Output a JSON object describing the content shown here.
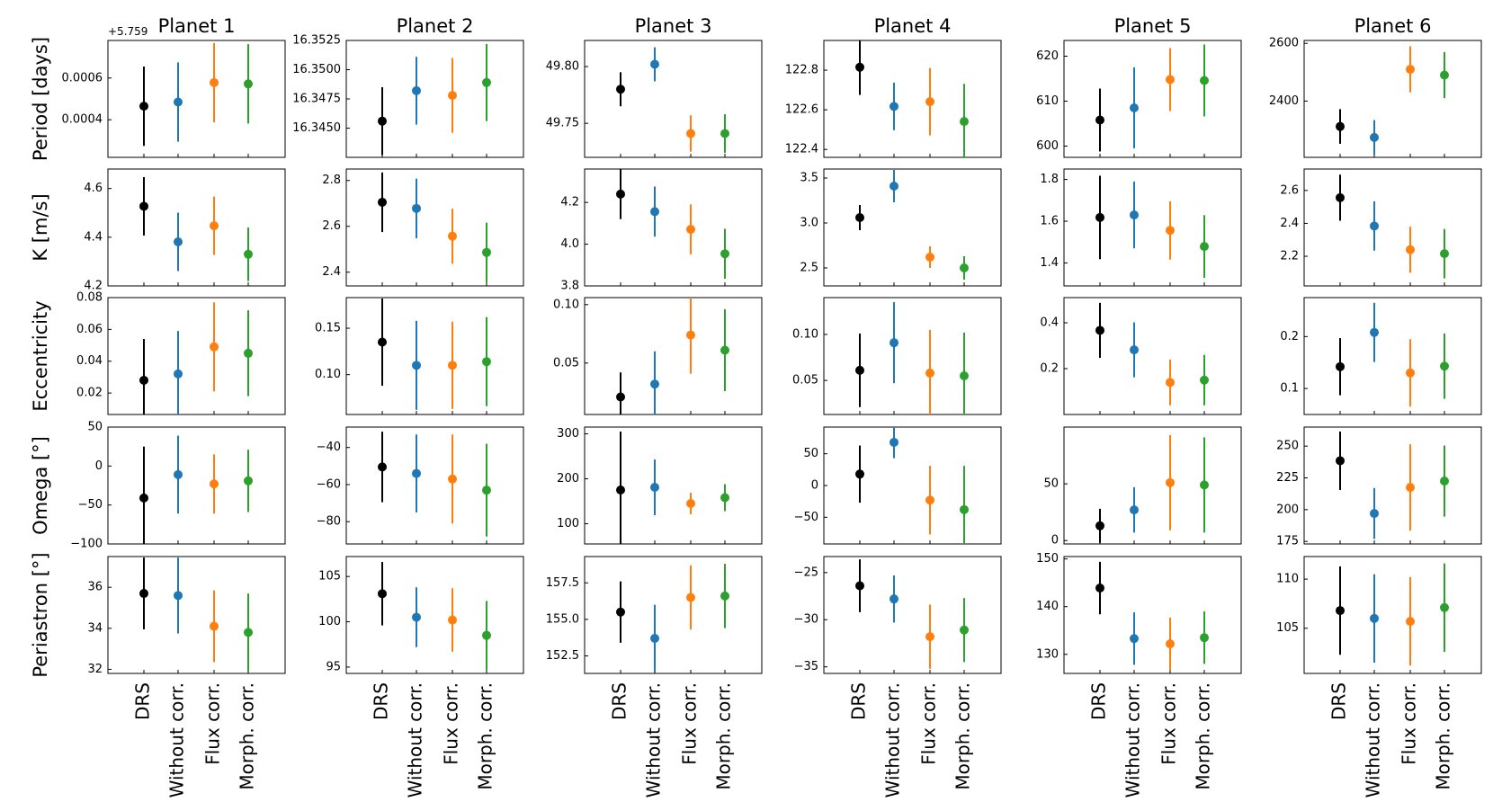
{
  "chart_data": {
    "type": "scatter",
    "subtype": "errorbar-grid",
    "methods": [
      "DRS",
      "Without corr.",
      "Flux corr.",
      "Morph. corr."
    ],
    "colors": {
      "DRS": "#000000",
      "Without corr.": "#1f77b4",
      "Flux corr.": "#ff7f0e",
      "Morph. corr.": "#2ca02c"
    },
    "planets": [
      "Planet 1",
      "Planet 2",
      "Planet 3",
      "Planet 4",
      "Planet 5",
      "Planet 6"
    ],
    "parameters": [
      "Period [days]",
      "K [m/s]",
      "Eccentricity",
      "Omega [°]",
      "Periastron [°]"
    ],
    "panels": [
      [
        {
          "offset_label": "+5.759",
          "ylim": [
            0.00022,
            0.00078
          ],
          "ticks": [
            0.0004,
            0.0006
          ],
          "tick_labels": [
            "0.0004",
            "0.0006"
          ],
          "values": [
            0.000465,
            0.000485,
            0.000578,
            0.000572
          ],
          "errors": [
            0.00019,
            0.00019,
            0.00019,
            0.00019
          ]
        },
        {
          "ylim": [
            16.3425,
            16.3525
          ],
          "ticks": [
            16.345,
            16.3475,
            16.35,
            16.3525
          ],
          "tick_labels": [
            "16.3450",
            "16.3475",
            "16.3500",
            "16.3525"
          ],
          "values": [
            16.3456,
            16.3482,
            16.3478,
            16.3489
          ],
          "errors": [
            0.0029,
            0.0029,
            0.0032,
            0.0033
          ]
        },
        {
          "ylim": [
            49.72,
            49.823
          ],
          "ticks": [
            49.75,
            49.8
          ],
          "tick_labels": [
            "49.75",
            "49.80"
          ],
          "values": [
            49.78,
            49.802,
            49.741,
            49.741
          ],
          "errors": [
            0.015,
            0.015,
            0.016,
            0.017
          ]
        },
        {
          "ylim": [
            122.36,
            122.95
          ],
          "ticks": [
            122.4,
            122.6,
            122.8
          ],
          "tick_labels": [
            "122.4",
            "122.6",
            "122.8"
          ],
          "values": [
            122.815,
            122.617,
            122.641,
            122.541
          ],
          "errors": [
            0.14,
            0.12,
            0.17,
            0.19
          ]
        },
        {
          "ylim": [
            597.5,
            623.5
          ],
          "ticks": [
            600,
            610,
            620
          ],
          "tick_labels": [
            "600",
            "610",
            "620"
          ],
          "values": [
            605.8,
            608.5,
            614.8,
            614.6
          ],
          "errors": [
            7,
            9,
            7,
            8
          ]
        },
        {
          "ylim": [
            2205,
            2610
          ],
          "ticks": [
            2400,
            2600
          ],
          "tick_labels": [
            "2400",
            "2600"
          ],
          "values": [
            2312,
            2274,
            2510,
            2490
          ],
          "errors": [
            60,
            60,
            80,
            80
          ]
        }
      ],
      [
        {
          "ylim": [
            4.2,
            4.68
          ],
          "ticks": [
            4.2,
            4.4,
            4.6
          ],
          "tick_labels": [
            "4.2",
            "4.4",
            "4.6"
          ],
          "values": [
            4.527,
            4.381,
            4.447,
            4.33
          ],
          "errors": [
            0.12,
            0.12,
            0.12,
            0.11
          ]
        },
        {
          "ylim": [
            2.34,
            2.85
          ],
          "ticks": [
            2.4,
            2.6,
            2.8
          ],
          "tick_labels": [
            "2.4",
            "2.6",
            "2.8"
          ],
          "values": [
            2.705,
            2.678,
            2.557,
            2.486
          ],
          "errors": [
            0.13,
            0.13,
            0.12,
            0.13
          ]
        },
        {
          "ylim": [
            3.8,
            4.36
          ],
          "ticks": [
            3.8,
            4.0,
            4.2
          ],
          "tick_labels": [
            "3.8",
            "4.0",
            "4.2"
          ],
          "values": [
            4.24,
            4.156,
            4.071,
            3.954
          ],
          "errors": [
            0.12,
            0.12,
            0.12,
            0.12
          ]
        },
        {
          "ylim": [
            2.3,
            3.6
          ],
          "ticks": [
            2.5,
            3.0,
            3.5
          ],
          "tick_labels": [
            "2.5",
            "3.0",
            "3.5"
          ],
          "values": [
            3.06,
            3.41,
            2.62,
            2.5
          ],
          "errors": [
            0.14,
            0.18,
            0.12,
            0.13
          ]
        },
        {
          "ylim": [
            1.29,
            1.85
          ],
          "ticks": [
            1.4,
            1.6,
            1.8
          ],
          "tick_labels": [
            "1.4",
            "1.6",
            "1.8"
          ],
          "values": [
            1.618,
            1.63,
            1.556,
            1.479
          ],
          "errors": [
            0.2,
            0.16,
            0.14,
            0.15
          ]
        },
        {
          "ylim": [
            2.02,
            2.73
          ],
          "ticks": [
            2.2,
            2.4,
            2.6
          ],
          "tick_labels": [
            "2.2",
            "2.4",
            "2.6"
          ],
          "values": [
            2.556,
            2.384,
            2.24,
            2.216
          ],
          "errors": [
            0.14,
            0.15,
            0.14,
            0.15
          ]
        }
      ],
      [
        {
          "ylim": [
            0.0065,
            0.08
          ],
          "ticks": [
            0.02,
            0.04,
            0.06,
            0.08
          ],
          "tick_labels": [
            "0.02",
            "0.04",
            "0.06",
            "0.08"
          ],
          "values": [
            0.028,
            0.032,
            0.049,
            0.045
          ],
          "errors": [
            0.026,
            0.027,
            0.028,
            0.027
          ]
        },
        {
          "ylim": [
            0.057,
            0.183
          ],
          "ticks": [
            0.1,
            0.15
          ],
          "tick_labels": [
            "0.10",
            "0.15"
          ],
          "values": [
            0.135,
            0.11,
            0.11,
            0.114
          ],
          "errors": [
            0.047,
            0.048,
            0.047,
            0.048
          ]
        },
        {
          "ylim": [
            0.006,
            0.106
          ],
          "ticks": [
            0.05,
            0.1
          ],
          "tick_labels": [
            "0.05",
            "0.10"
          ],
          "values": [
            0.021,
            0.032,
            0.074,
            0.061
          ],
          "errors": [
            0.021,
            0.028,
            0.033,
            0.035
          ]
        },
        {
          "ylim": [
            0.013,
            0.14
          ],
          "ticks": [
            0.05,
            0.1
          ],
          "tick_labels": [
            "0.05",
            "0.10"
          ],
          "values": [
            0.061,
            0.091,
            0.058,
            0.055
          ],
          "errors": [
            0.04,
            0.044,
            0.047,
            0.047
          ]
        },
        {
          "ylim": [
            0.0,
            0.51
          ],
          "ticks": [
            0.2,
            0.4
          ],
          "tick_labels": [
            "0.2",
            "0.4"
          ],
          "values": [
            0.367,
            0.282,
            0.14,
            0.15
          ],
          "errors": [
            0.12,
            0.12,
            0.1,
            0.11
          ]
        },
        {
          "ylim": [
            0.05,
            0.275
          ],
          "ticks": [
            0.1,
            0.2
          ],
          "tick_labels": [
            "0.1",
            "0.2"
          ],
          "values": [
            0.142,
            0.208,
            0.13,
            0.143
          ],
          "errors": [
            0.055,
            0.057,
            0.065,
            0.063
          ]
        }
      ],
      [
        {
          "ylim": [
            -100,
            50
          ],
          "ticks": [
            -100,
            -50,
            0,
            50
          ],
          "tick_labels": [
            "−100",
            "−50",
            "0",
            "50"
          ],
          "values": [
            -41,
            -11,
            -23,
            -19
          ],
          "errors": [
            66,
            50,
            38,
            40
          ]
        },
        {
          "ylim": [
            -92,
            -29
          ],
          "ticks": [
            -80,
            -60,
            -40
          ],
          "tick_labels": [
            "−80",
            "−60",
            "−40"
          ],
          "values": [
            -50.5,
            -54,
            -57,
            -63
          ],
          "errors": [
            19,
            21,
            24,
            25
          ]
        },
        {
          "ylim": [
            55,
            315
          ],
          "ticks": [
            100,
            200,
            300
          ],
          "tick_labels": [
            "100",
            "200",
            "300"
          ],
          "values": [
            175,
            181,
            145,
            158
          ],
          "errors": [
            130,
            62,
            24,
            30
          ]
        },
        {
          "ylim": [
            -92,
            92
          ],
          "ticks": [
            -50,
            0,
            50
          ],
          "tick_labels": [
            "−50",
            "0",
            "50"
          ],
          "values": [
            18,
            68,
            -23,
            -38
          ],
          "errors": [
            45,
            25,
            54,
            69
          ]
        },
        {
          "ylim": [
            -3,
            100
          ],
          "ticks": [
            0,
            50
          ],
          "tick_labels": [
            "0",
            "50"
          ],
          "values": [
            13,
            27,
            51,
            49
          ],
          "errors": [
            15,
            20,
            42,
            42
          ]
        },
        {
          "ylim": [
            173,
            265
          ],
          "ticks": [
            175,
            200,
            225,
            250
          ],
          "tick_labels": [
            "175",
            "200",
            "225",
            "250"
          ],
          "values": [
            238.5,
            197,
            217.5,
            222.5
          ],
          "errors": [
            23,
            20,
            34,
            28
          ]
        }
      ],
      [
        {
          "ylim": [
            31.8,
            37.5
          ],
          "ticks": [
            32,
            34,
            36
          ],
          "tick_labels": [
            "32",
            "34",
            "36"
          ],
          "values": [
            35.7,
            35.6,
            34.1,
            33.8
          ],
          "errors": [
            1.75,
            1.85,
            1.75,
            1.9
          ]
        },
        {
          "ylim": [
            94.3,
            107.2
          ],
          "ticks": [
            95,
            100,
            105
          ],
          "tick_labels": [
            "95",
            "100",
            "105"
          ],
          "values": [
            103.1,
            100.5,
            100.2,
            98.5
          ],
          "errors": [
            3.5,
            3.3,
            3.5,
            3.8
          ]
        },
        {
          "ylim": [
            151.3,
            159.3
          ],
          "ticks": [
            152.5,
            155.0,
            157.5
          ],
          "tick_labels": [
            "152.5",
            "155.0",
            "157.5"
          ],
          "values": [
            155.5,
            153.7,
            156.5,
            156.6
          ],
          "errors": [
            2.1,
            2.3,
            2.2,
            2.2
          ]
        },
        {
          "ylim": [
            -35.7,
            -23.3
          ],
          "ticks": [
            -35,
            -30,
            -25
          ],
          "tick_labels": [
            "−35",
            "−30",
            "−25"
          ],
          "values": [
            -26.4,
            -27.8,
            -31.8,
            -31.1
          ],
          "errors": [
            2.8,
            2.5,
            3.4,
            3.4
          ]
        },
        {
          "ylim": [
            126,
            150.5
          ],
          "ticks": [
            130,
            140,
            150
          ],
          "tick_labels": [
            "130",
            "140",
            "150"
          ],
          "values": [
            143.9,
            133.3,
            132.2,
            133.5
          ],
          "errors": [
            5.5,
            5.5,
            5.5,
            5.5
          ]
        },
        {
          "ylim": [
            100.4,
            112.3
          ],
          "ticks": [
            105,
            110
          ],
          "tick_labels": [
            "105",
            "110"
          ],
          "values": [
            106.8,
            106.0,
            105.7,
            107.1
          ],
          "errors": [
            4.5,
            4.5,
            4.5,
            4.5
          ]
        }
      ]
    ]
  }
}
